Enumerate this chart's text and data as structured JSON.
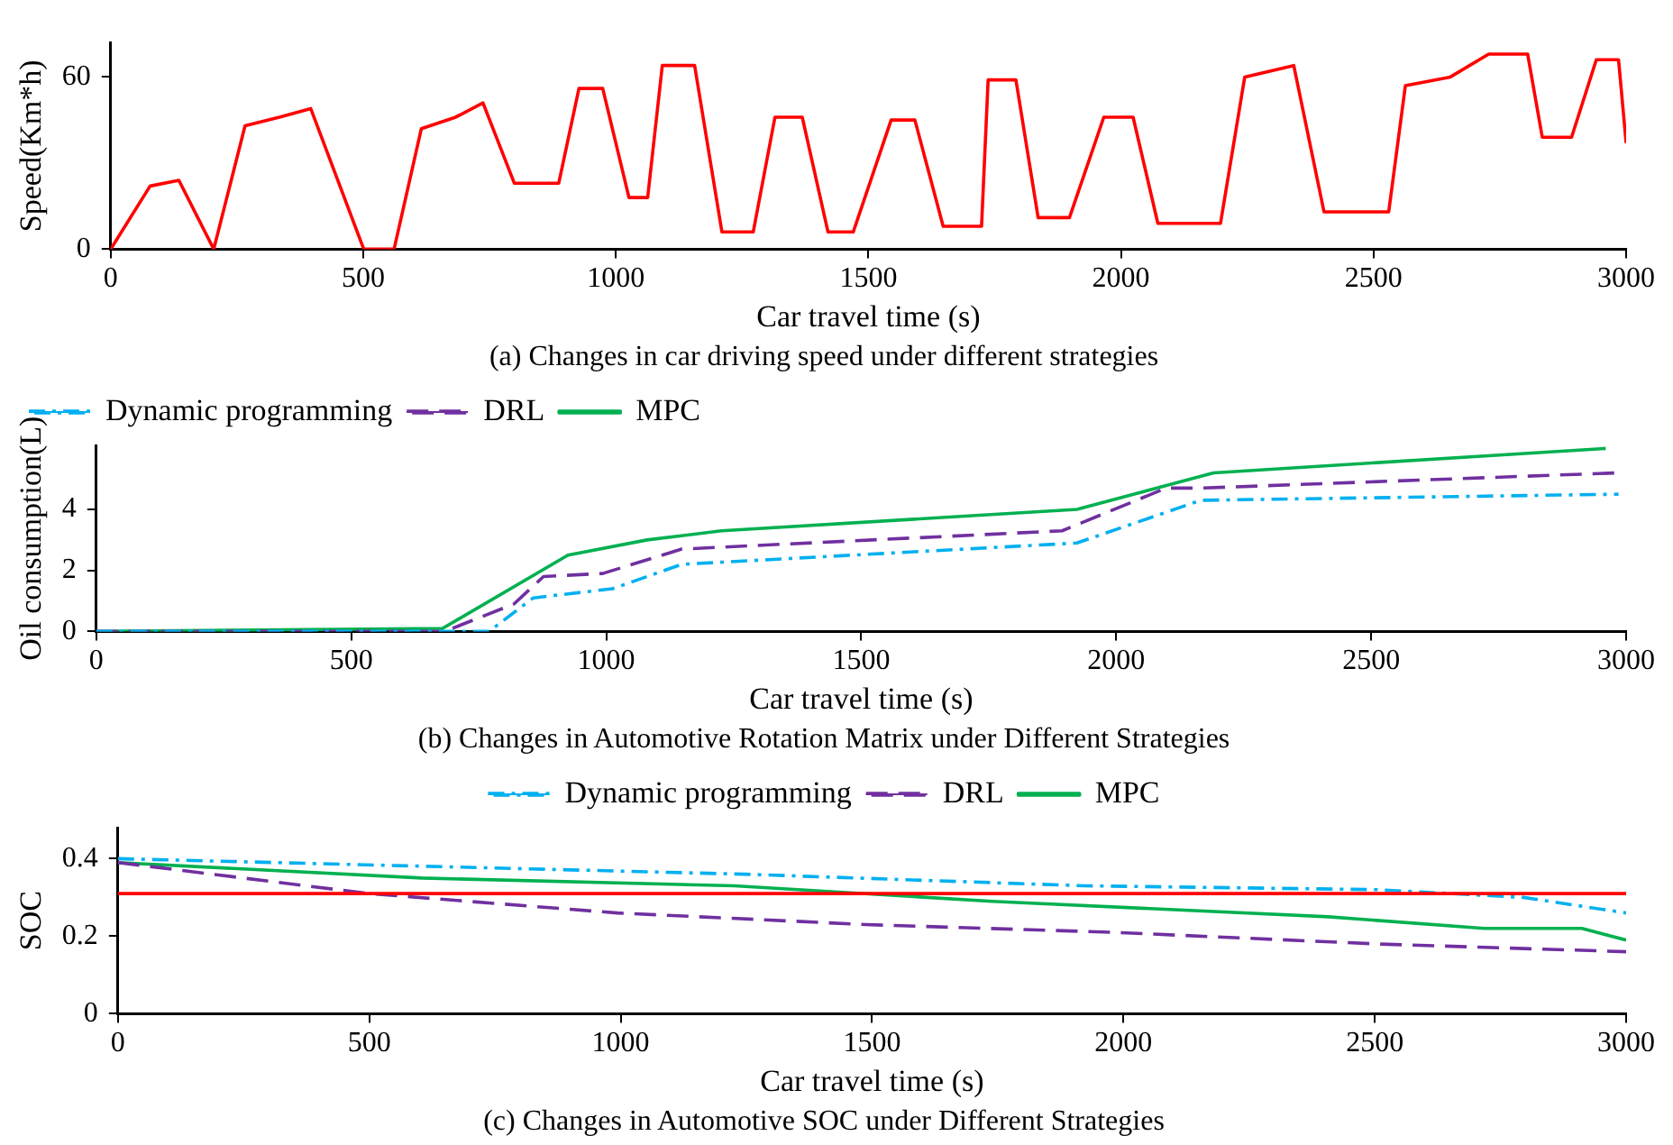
{
  "chart_data": [
    {
      "type": "line",
      "title": "(a) Changes in car driving speed under different strategies",
      "xlabel": "Car travel time (s)",
      "ylabel": "Speed(Km*h)",
      "xlim": [
        0,
        3000
      ],
      "xticks": [
        0,
        500,
        1000,
        1500,
        2000,
        2500,
        3000
      ],
      "ylim": [
        0,
        72
      ],
      "yticks": [
        0,
        60
      ],
      "grid": false,
      "legend": false,
      "marker": "none",
      "series": [
        {
          "color": "#ff0000",
          "line_style": "solid",
          "x": [
            0,
            78,
            135,
            204,
            266,
            334,
            396,
            501,
            561,
            615,
            683,
            737,
            799,
            887,
            927,
            974,
            1026,
            1063,
            1092,
            1156,
            1210,
            1272,
            1315,
            1369,
            1420,
            1470,
            1545,
            1592,
            1648,
            1724,
            1737,
            1792,
            1836,
            1898,
            1966,
            2024,
            2073,
            2197,
            2245,
            2342,
            2402,
            2530,
            2563,
            2652,
            2728,
            2805,
            2834,
            2892,
            2941,
            2985,
            3000
          ],
          "values": [
            0,
            22,
            24,
            0,
            43,
            46,
            49,
            0,
            0,
            42,
            46,
            51,
            23,
            23,
            56,
            56,
            18,
            18,
            64,
            64,
            6,
            6,
            46,
            46,
            6,
            6,
            45,
            45,
            8,
            8,
            59,
            59,
            11,
            11,
            46,
            46,
            9,
            9,
            60,
            64,
            13,
            13,
            57,
            60,
            68,
            68,
            39,
            39,
            66,
            66,
            37
          ]
        }
      ]
    },
    {
      "type": "line",
      "title": "(b) Changes in Automotive Rotation Matrix under Different Strategies",
      "xlabel": "Car travel time (s)",
      "ylabel": "Oil consumption(L)",
      "xlim": [
        0,
        3000
      ],
      "xticks": [
        0,
        500,
        1000,
        1500,
        2000,
        2500,
        3000
      ],
      "ylim": [
        0,
        6.1
      ],
      "yticks": [
        0,
        2,
        4
      ],
      "grid": false,
      "legend": "top left",
      "marker": "none",
      "series": [
        {
          "name": "Dynamic programming",
          "color": "#00b0f0",
          "line_style": "dashdot",
          "x": [
            0,
            770,
            857,
            1012,
            1148,
            1923,
            2166,
            2985
          ],
          "values": [
            0,
            0,
            1.1,
            1.4,
            2.2,
            2.9,
            4.3,
            4.5
          ]
        },
        {
          "name": "DRL",
          "color": "#7030a0",
          "line_style": "dashed",
          "x": [
            0,
            683,
            819,
            877,
            993,
            1148,
            1894,
            2098,
            2166,
            2985
          ],
          "values": [
            0,
            0,
            0.9,
            1.8,
            1.9,
            2.7,
            3.3,
            4.7,
            4.7,
            5.2
          ]
        },
        {
          "name": "MPC",
          "color": "#00b050",
          "line_style": "solid",
          "x": [
            0,
            679,
            925,
            1080,
            1226,
            1923,
            2191,
            2960
          ],
          "values": [
            0,
            0.1,
            2.5,
            3.0,
            3.3,
            4.0,
            5.2,
            6.0
          ]
        }
      ]
    },
    {
      "type": "line",
      "title": "(c) Changes in Automotive SOC under Different Strategies",
      "xlabel": "Car travel time (s)",
      "ylabel": "SOC",
      "xlim": [
        0,
        3000
      ],
      "xticks": [
        0,
        500,
        1000,
        1500,
        2000,
        2500,
        3000
      ],
      "ylim": [
        0,
        0.48
      ],
      "yticks": [
        0,
        0.2,
        0.4
      ],
      "grid": false,
      "legend": "top",
      "marker": "none",
      "ref_lines": [
        {
          "axis": "y",
          "value": 0.31,
          "color": "#ff0000"
        }
      ],
      "series": [
        {
          "name": "Dynamic programming",
          "color": "#00b0f0",
          "line_style": "dashdot",
          "x": [
            0,
            1245,
            1923,
            2505,
            2796,
            3000
          ],
          "values": [
            0.4,
            0.36,
            0.33,
            0.32,
            0.3,
            0.26
          ]
        },
        {
          "name": "DRL",
          "color": "#7030a0",
          "line_style": "dashed",
          "x": [
            0,
            499,
            993,
            1487,
            1981,
            2505,
            3000
          ],
          "values": [
            0.39,
            0.31,
            0.26,
            0.23,
            0.21,
            0.18,
            0.16
          ]
        },
        {
          "name": "MPC",
          "color": "#00b050",
          "line_style": "solid",
          "x": [
            0,
            605,
            1226,
            1739,
            2408,
            2718,
            2912,
            3000
          ],
          "values": [
            0.39,
            0.35,
            0.33,
            0.29,
            0.25,
            0.22,
            0.22,
            0.19
          ]
        }
      ]
    }
  ]
}
